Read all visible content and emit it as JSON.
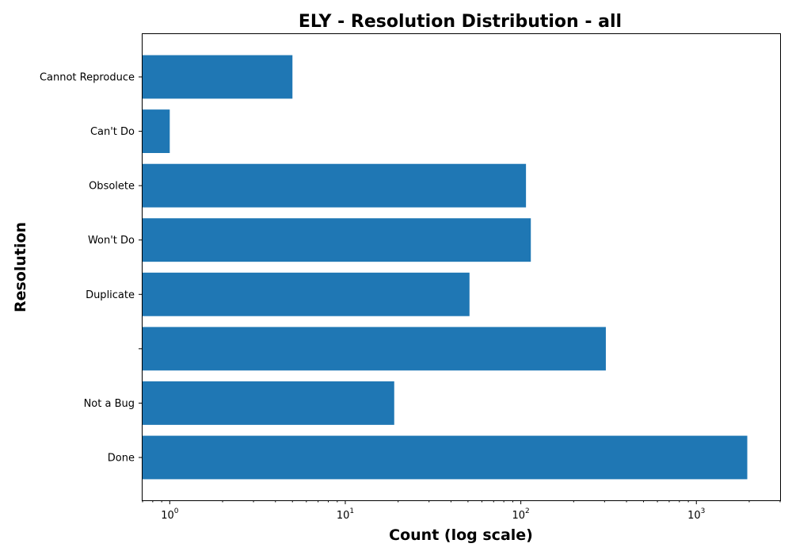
{
  "chart_data": {
    "type": "bar",
    "orientation": "horizontal",
    "title": "ELY - Resolution Distribution - all",
    "xlabel": "Count (log scale)",
    "ylabel": "Resolution",
    "x_scale": "log",
    "xlim": [
      0.7,
      3000
    ],
    "x_ticks": [
      {
        "base": "10",
        "exp": "0",
        "value": 1
      },
      {
        "base": "10",
        "exp": "1",
        "value": 10
      },
      {
        "base": "10",
        "exp": "2",
        "value": 100
      },
      {
        "base": "10",
        "exp": "3",
        "value": 1000
      }
    ],
    "categories": [
      "Done",
      "Not a Bug",
      "",
      "Duplicate",
      "Won't Do",
      "Obsolete",
      "Can't Do",
      "Cannot Reproduce"
    ],
    "values": [
      1950,
      19,
      305,
      51,
      114,
      107,
      1,
      5
    ],
    "color": "#1f77b4",
    "grid": false,
    "legend": false
  }
}
